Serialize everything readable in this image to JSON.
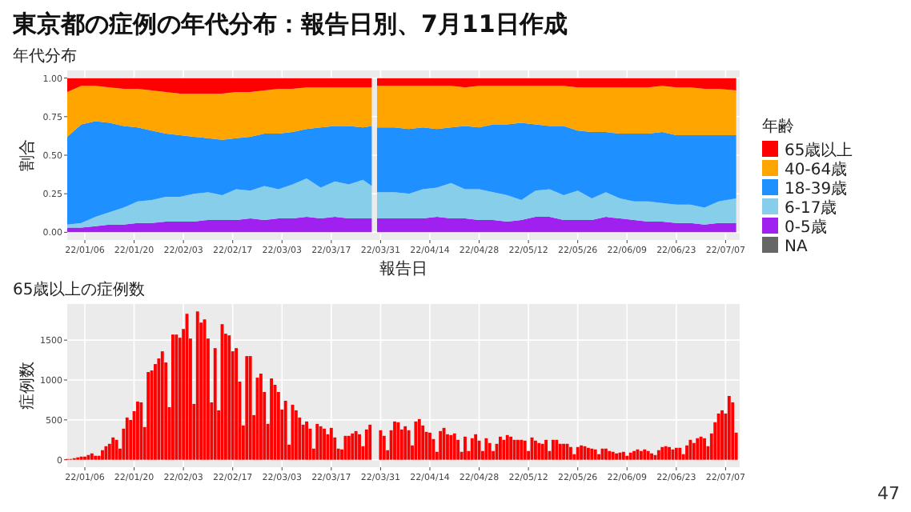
{
  "chart_data": [
    {
      "type": "area",
      "stacked": true,
      "title": "東京都の症例の年代分布：報告日別、7月11日作成",
      "subtitle": "年代分布",
      "xlabel": "報告日",
      "ylabel": "割合",
      "legend_title": "年齢",
      "legend": "right",
      "grid": true,
      "x": [
        "--01-01",
        "--01-05",
        "--01-09",
        "--01-13",
        "--01-17",
        "--01-21",
        "--01-25",
        "--01-29",
        "--02-02",
        "--02-06",
        "--02-10",
        "--02-14",
        "--02-18",
        "--02-22",
        "--02-26",
        "--03-02",
        "--03-06",
        "--03-10",
        "--03-14",
        "--03-18",
        "--03-22",
        "--03-26",
        "--03-28",
        "--03-29",
        "--03-31",
        "--04-04",
        "--04-08",
        "--04-12",
        "--04-16",
        "--04-20",
        "--04-24",
        "--04-28",
        "--05-02",
        "--05-06",
        "--05-10",
        "--05-14",
        "--05-18",
        "--05-22",
        "--05-26",
        "--05-30",
        "--06-03",
        "--06-07",
        "--06-11",
        "--06-15",
        "--06-19",
        "--06-23",
        "--06-27",
        "--07-01",
        "--07-05",
        "--07-10"
      ],
      "xlim": [
        "--01-01",
        "--07-11"
      ],
      "xticks": [
        {
          "value": "--01-06",
          "label": "22/01/06"
        },
        {
          "value": "--01-20",
          "label": "22/01/20"
        },
        {
          "value": "--02-03",
          "label": "22/02/03"
        },
        {
          "value": "--02-17",
          "label": "22/02/17"
        },
        {
          "value": "--03-03",
          "label": "22/03/03"
        },
        {
          "value": "--03-17",
          "label": "22/03/17"
        },
        {
          "value": "--03-31",
          "label": "22/03/31"
        },
        {
          "value": "--04-14",
          "label": "22/04/14"
        },
        {
          "value": "--04-28",
          "label": "22/04/28"
        },
        {
          "value": "--05-12",
          "label": "22/05/12"
        },
        {
          "value": "--05-26",
          "label": "22/05/26"
        },
        {
          "value": "--06-09",
          "label": "22/06/09"
        },
        {
          "value": "--06-23",
          "label": "22/06/23"
        },
        {
          "value": "--07-07",
          "label": "22/07/07"
        }
      ],
      "ylim": [
        -0.05,
        1.05
      ],
      "yticks": [
        {
          "value": 0,
          "label": "0.00"
        },
        {
          "value": 0.25,
          "label": "0.25"
        },
        {
          "value": 0.5,
          "label": "0.50"
        },
        {
          "value": 0.75,
          "label": "0.75"
        },
        {
          "value": 1,
          "label": "1.00"
        }
      ],
      "series": [
        {
          "name": "NA",
          "color": "#666666",
          "values": [
            null,
            null,
            null,
            null,
            null,
            null,
            null,
            null,
            null,
            null,
            null,
            null,
            null,
            null,
            null,
            null,
            null,
            null,
            null,
            null,
            null,
            null,
            null,
            null,
            null,
            null,
            null,
            null,
            null,
            null,
            null,
            null,
            null,
            null,
            null,
            null,
            null,
            null,
            null,
            null,
            null,
            null,
            null,
            null,
            null,
            null,
            null,
            null,
            null,
            null
          ]
        },
        {
          "name": "0-5歳",
          "color": "#a020f0",
          "values": [
            0.03,
            0.03,
            0.04,
            0.05,
            0.05,
            0.06,
            0.06,
            0.07,
            0.07,
            0.07,
            0.08,
            0.08,
            0.08,
            0.09,
            0.08,
            0.09,
            0.09,
            0.1,
            0.09,
            0.1,
            0.09,
            0.09,
            0.09,
            null,
            0.09,
            0.09,
            0.09,
            0.09,
            0.1,
            0.09,
            0.09,
            0.08,
            0.08,
            0.07,
            0.08,
            0.1,
            0.1,
            0.08,
            0.08,
            0.08,
            0.1,
            0.09,
            0.08,
            0.07,
            0.07,
            0.06,
            0.06,
            0.05,
            0.06,
            0.06
          ]
        },
        {
          "name": "6-17歳",
          "color": "#87ceeb",
          "values": [
            0.02,
            0.03,
            0.06,
            0.08,
            0.11,
            0.14,
            0.15,
            0.16,
            0.16,
            0.18,
            0.18,
            0.16,
            0.2,
            0.18,
            0.22,
            0.19,
            0.22,
            0.25,
            0.2,
            0.23,
            0.22,
            0.25,
            0.21,
            null,
            0.17,
            0.17,
            0.16,
            0.19,
            0.19,
            0.23,
            0.19,
            0.2,
            0.18,
            0.17,
            0.13,
            0.17,
            0.18,
            0.16,
            0.19,
            0.14,
            0.16,
            0.13,
            0.12,
            0.13,
            0.12,
            0.12,
            0.12,
            0.11,
            0.14,
            0.16
          ]
        },
        {
          "name": "18-39歳",
          "color": "#1e90ff",
          "values": [
            0.57,
            0.64,
            0.62,
            0.58,
            0.53,
            0.48,
            0.45,
            0.41,
            0.4,
            0.37,
            0.35,
            0.36,
            0.33,
            0.35,
            0.34,
            0.36,
            0.34,
            0.32,
            0.39,
            0.36,
            0.38,
            0.34,
            0.39,
            null,
            0.42,
            0.42,
            0.42,
            0.4,
            0.38,
            0.36,
            0.41,
            0.4,
            0.44,
            0.46,
            0.5,
            0.43,
            0.41,
            0.45,
            0.39,
            0.43,
            0.39,
            0.42,
            0.44,
            0.44,
            0.46,
            0.45,
            0.45,
            0.47,
            0.43,
            0.41
          ]
        },
        {
          "name": "40-64歳",
          "color": "#ffa500",
          "values": [
            0.29,
            0.25,
            0.23,
            0.23,
            0.24,
            0.25,
            0.26,
            0.27,
            0.27,
            0.28,
            0.29,
            0.3,
            0.3,
            0.29,
            0.28,
            0.29,
            0.28,
            0.27,
            0.26,
            0.25,
            0.25,
            0.26,
            0.25,
            null,
            0.27,
            0.27,
            0.28,
            0.27,
            0.28,
            0.27,
            0.25,
            0.27,
            0.25,
            0.25,
            0.24,
            0.25,
            0.26,
            0.26,
            0.28,
            0.29,
            0.29,
            0.3,
            0.3,
            0.3,
            0.3,
            0.31,
            0.31,
            0.3,
            0.3,
            0.29
          ]
        },
        {
          "name": "65歳以上",
          "color": "#ff0000",
          "values": [
            0.09,
            0.05,
            0.05,
            0.06,
            0.07,
            0.07,
            0.08,
            0.09,
            0.1,
            0.1,
            0.1,
            0.1,
            0.09,
            0.09,
            0.08,
            0.07,
            0.07,
            0.06,
            0.06,
            0.06,
            0.06,
            0.06,
            0.06,
            null,
            0.05,
            0.05,
            0.05,
            0.05,
            0.05,
            0.05,
            0.06,
            0.05,
            0.05,
            0.05,
            0.05,
            0.05,
            0.05,
            0.05,
            0.06,
            0.06,
            0.06,
            0.06,
            0.06,
            0.06,
            0.05,
            0.06,
            0.06,
            0.07,
            0.07,
            0.08
          ]
        }
      ]
    },
    {
      "type": "bar",
      "subtitle": "65歳以上の症例数",
      "ylabel": "症例数",
      "grid": true,
      "color": "#ff0000",
      "x": [
        "--01-01",
        "--01-02",
        "--01-03",
        "--01-04",
        "--01-05",
        "--01-06",
        "--01-07",
        "--01-08",
        "--01-09",
        "--01-10",
        "--01-11",
        "--01-12",
        "--01-13",
        "--01-14",
        "--01-15",
        "--01-16",
        "--01-17",
        "--01-18",
        "--01-19",
        "--01-20",
        "--01-21",
        "--01-22",
        "--01-23",
        "--01-24",
        "--01-25",
        "--01-26",
        "--01-27",
        "--01-28",
        "--01-29",
        "--01-30",
        "--01-31",
        "--02-01",
        "--02-02",
        "--02-03",
        "--02-04",
        "--02-05",
        "--02-06",
        "--02-07",
        "--02-08",
        "--02-09",
        "--02-10",
        "--02-11",
        "--02-12",
        "--02-13",
        "--02-14",
        "--02-15",
        "--02-16",
        "--02-17",
        "--02-18",
        "--02-19",
        "--02-20",
        "--02-21",
        "--02-22",
        "--02-23",
        "--02-24",
        "--02-25",
        "--02-26",
        "--02-27",
        "--02-28",
        "--03-01",
        "--03-02",
        "--03-03",
        "--03-04",
        "--03-05",
        "--03-06",
        "--03-07",
        "--03-08",
        "--03-09",
        "--03-10",
        "--03-11",
        "--03-12",
        "--03-13",
        "--03-14",
        "--03-15",
        "--03-16",
        "--03-17",
        "--03-18",
        "--03-19",
        "--03-20",
        "--03-21",
        "--03-22",
        "--03-23",
        "--03-24",
        "--03-25",
        "--03-26",
        "--03-27",
        "--03-28",
        "--03-31",
        "--04-01",
        "--04-02",
        "--04-03",
        "--04-04",
        "--04-05",
        "--04-06",
        "--04-07",
        "--04-08",
        "--04-09",
        "--04-10",
        "--04-11",
        "--04-12",
        "--04-13",
        "--04-14",
        "--04-15",
        "--04-16",
        "--04-17",
        "--04-18",
        "--04-19",
        "--04-20",
        "--04-21",
        "--04-22",
        "--04-23",
        "--04-24",
        "--04-25",
        "--04-26",
        "--04-27",
        "--04-28",
        "--04-29",
        "--04-30",
        "--05-01",
        "--05-02",
        "--05-03",
        "--05-04",
        "--05-05",
        "--05-06",
        "--05-07",
        "--05-08",
        "--05-09",
        "--05-10",
        "--05-11",
        "--05-12",
        "--05-13",
        "--05-14",
        "--05-15",
        "--05-16",
        "--05-17",
        "--05-18",
        "--05-19",
        "--05-20",
        "--05-21",
        "--05-22",
        "--05-23",
        "--05-24",
        "--05-25",
        "--05-26",
        "--05-27",
        "--05-28",
        "--05-29",
        "--05-30",
        "--05-31",
        "--06-01",
        "--06-02",
        "--06-03",
        "--06-04",
        "--06-05",
        "--06-06",
        "--06-07",
        "--06-08",
        "--06-09",
        "--06-10",
        "--06-11",
        "--06-12",
        "--06-13",
        "--06-14",
        "--06-15",
        "--06-16",
        "--06-17",
        "--06-18",
        "--06-19",
        "--06-20",
        "--06-21",
        "--06-22",
        "--06-23",
        "--06-24",
        "--06-25",
        "--06-26",
        "--06-27",
        "--06-28",
        "--06-29",
        "--06-30",
        "--07-01",
        "--07-02",
        "--07-03",
        "--07-04",
        "--07-05",
        "--07-06",
        "--07-07",
        "--07-08",
        "--07-09",
        "--07-10"
      ],
      "values": [
        10,
        10,
        20,
        30,
        40,
        40,
        60,
        80,
        50,
        50,
        120,
        170,
        200,
        280,
        250,
        140,
        390,
        530,
        500,
        610,
        730,
        720,
        410,
        1100,
        1120,
        1200,
        1270,
        1360,
        1220,
        660,
        1570,
        1570,
        1530,
        1640,
        1830,
        1520,
        700,
        1860,
        1720,
        1760,
        1520,
        720,
        1400,
        620,
        1700,
        1580,
        1560,
        1360,
        1400,
        980,
        430,
        1300,
        1300,
        560,
        1030,
        1080,
        850,
        450,
        1020,
        940,
        850,
        630,
        740,
        190,
        690,
        620,
        530,
        440,
        480,
        390,
        140,
        450,
        420,
        390,
        320,
        400,
        280,
        140,
        130,
        300,
        300,
        330,
        360,
        320,
        170,
        380,
        440,
        370,
        300,
        120,
        370,
        480,
        470,
        380,
        420,
        370,
        180,
        480,
        510,
        430,
        350,
        340,
        260,
        100,
        360,
        400,
        320,
        310,
        330,
        250,
        100,
        290,
        110,
        270,
        320,
        240,
        110,
        270,
        210,
        110,
        200,
        290,
        250,
        310,
        290,
        250,
        250,
        250,
        240,
        110,
        280,
        240,
        210,
        200,
        250,
        110,
        250,
        250,
        200,
        200,
        200,
        160,
        70,
        160,
        180,
        170,
        150,
        140,
        130,
        70,
        140,
        140,
        110,
        100,
        80,
        90,
        100,
        50,
        90,
        110,
        130,
        110,
        130,
        110,
        80,
        60,
        120,
        160,
        170,
        160,
        130,
        150,
        150,
        70,
        180,
        250,
        210,
        270,
        290,
        270,
        170,
        330,
        470,
        580,
        620,
        580,
        800,
        720,
        340
      ],
      "xlim": [
        "--01-01",
        "--07-11"
      ],
      "xticks": [
        {
          "value": "--01-06",
          "label": "22/01/06"
        },
        {
          "value": "--01-20",
          "label": "22/01/20"
        },
        {
          "value": "--02-03",
          "label": "22/02/03"
        },
        {
          "value": "--02-17",
          "label": "22/02/17"
        },
        {
          "value": "--03-03",
          "label": "22/03/03"
        },
        {
          "value": "--03-17",
          "label": "22/03/17"
        },
        {
          "value": "--03-31",
          "label": "22/03/31"
        },
        {
          "value": "--04-14",
          "label": "22/04/14"
        },
        {
          "value": "--04-28",
          "label": "22/04/28"
        },
        {
          "value": "--05-12",
          "label": "22/05/12"
        },
        {
          "value": "--05-26",
          "label": "22/05/26"
        },
        {
          "value": "--06-09",
          "label": "22/06/09"
        },
        {
          "value": "--06-23",
          "label": "22/06/23"
        },
        {
          "value": "--07-07",
          "label": "22/07/07"
        }
      ],
      "ylim": [
        -93,
        1953
      ],
      "yticks": [
        0,
        500,
        1000,
        1500
      ],
      "annotations": [
        "47"
      ]
    }
  ]
}
